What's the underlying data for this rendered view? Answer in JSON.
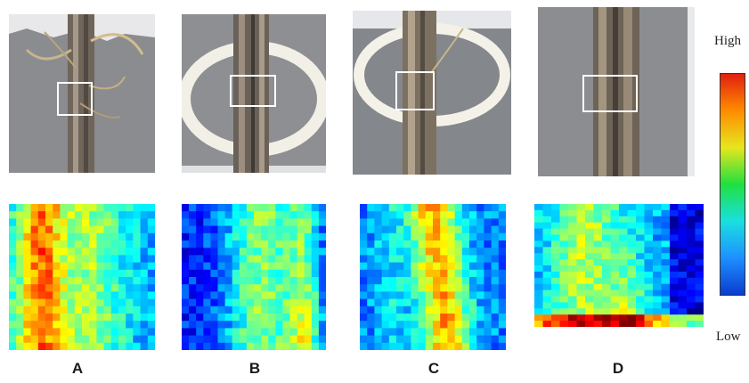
{
  "figure": {
    "panels": [
      {
        "id": "A",
        "label": "A"
      },
      {
        "id": "B",
        "label": "B"
      },
      {
        "id": "C",
        "label": "C"
      },
      {
        "id": "D",
        "label": "D"
      }
    ],
    "colorbar": {
      "high_label": "High",
      "low_label": "Low",
      "colormap": "jet",
      "colors_low_to_high": [
        "#0a3ccf",
        "#1e90ff",
        "#19e0e0",
        "#20e040",
        "#e6e61e",
        "#ff8c00",
        "#e02010"
      ]
    }
  }
}
